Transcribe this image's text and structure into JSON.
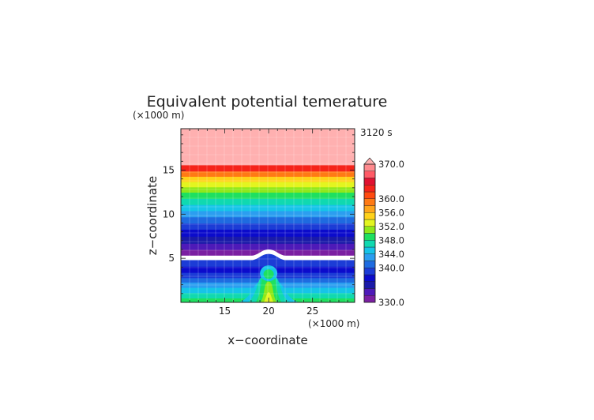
{
  "chart_data": {
    "type": "heatmap",
    "title": "Equivalent potential temerature",
    "time_label": "3120 s",
    "xlabel": "x−coordinate",
    "ylabel": "z−coordinate",
    "x_unit": "(×1000 m)",
    "y_unit": "(×1000 m)",
    "xlim": [
      10,
      29.8
    ],
    "ylim": [
      0,
      19.7
    ],
    "x_ticks": [
      "15",
      "20",
      "25"
    ],
    "x_tick_values": [
      15,
      20,
      25
    ],
    "y_ticks": [
      "5",
      "10",
      "15"
    ],
    "y_tick_values": [
      5,
      10,
      15
    ],
    "grid": true,
    "colorbar": {
      "levels": [
        330,
        332,
        334,
        336,
        338,
        340,
        342,
        344,
        346,
        348,
        350,
        352,
        354,
        356,
        358,
        360,
        362,
        364,
        366,
        368,
        370
      ],
      "colors": [
        "#7b1fa2",
        "#4e1ab8",
        "#1a1aa8",
        "#0b0bcc",
        "#1c3cd6",
        "#1e6be0",
        "#2b9ef0",
        "#16c4e8",
        "#10d9b0",
        "#1ee060",
        "#8ee81a",
        "#e3f520",
        "#ffd21a",
        "#ffa51a",
        "#ff7a14",
        "#ff4a10",
        "#f5231a",
        "#e01030",
        "#ff5a66",
        "#ff8a8e"
      ],
      "over_color": "#ffb0b0",
      "tick_labels": [
        "330.0",
        "340.0",
        "344.0",
        "348.0",
        "352.0",
        "356.0",
        "360.0",
        "370.0"
      ],
      "tick_values": [
        330,
        340,
        344,
        348,
        352,
        356,
        360,
        370
      ]
    },
    "field_bands": [
      {
        "z_from": 0.0,
        "z_to": 0.5,
        "value": 349
      },
      {
        "z_from": 0.5,
        "z_to": 1.1,
        "value": 347
      },
      {
        "z_from": 1.1,
        "z_to": 1.7,
        "value": 345
      },
      {
        "z_from": 1.7,
        "z_to": 2.3,
        "value": 343
      },
      {
        "z_from": 2.3,
        "z_to": 2.8,
        "value": 341
      },
      {
        "z_from": 2.8,
        "z_to": 3.4,
        "value": 339
      },
      {
        "z_from": 3.4,
        "z_to": 4.1,
        "value": 337
      },
      {
        "z_from": 4.1,
        "z_to": 4.8,
        "value": 339
      },
      {
        "z_from": 5.3,
        "z_to": 6.0,
        "value": 331
      },
      {
        "z_from": 6.0,
        "z_to": 6.7,
        "value": 333
      },
      {
        "z_from": 6.7,
        "z_to": 7.5,
        "value": 335
      },
      {
        "z_from": 7.5,
        "z_to": 8.3,
        "value": 337
      },
      {
        "z_from": 8.3,
        "z_to": 9.0,
        "value": 339
      },
      {
        "z_from": 9.0,
        "z_to": 9.7,
        "value": 341
      },
      {
        "z_from": 9.7,
        "z_to": 10.4,
        "value": 343
      },
      {
        "z_from": 10.4,
        "z_to": 11.1,
        "value": 345
      },
      {
        "z_from": 11.1,
        "z_to": 11.8,
        "value": 347
      },
      {
        "z_from": 11.8,
        "z_to": 12.5,
        "value": 349
      },
      {
        "z_from": 12.5,
        "z_to": 13.1,
        "value": 351
      },
      {
        "z_from": 13.1,
        "z_to": 13.7,
        "value": 353
      },
      {
        "z_from": 13.7,
        "z_to": 14.3,
        "value": 355
      },
      {
        "z_from": 14.3,
        "z_to": 14.9,
        "value": 359
      },
      {
        "z_from": 14.9,
        "z_to": 15.6,
        "value": 363
      },
      {
        "z_from": 15.6,
        "z_to": 19.7,
        "value": 371
      }
    ],
    "gap_band": {
      "z_from": 4.8,
      "z_to": 5.3,
      "color": "#ffffff"
    },
    "plume": {
      "center_x": 20,
      "layers": [
        {
          "value": 345,
          "half_width": 3.6,
          "z_top": 2.6
        },
        {
          "value": 347,
          "half_width": 2.6,
          "z_top": 3.2
        },
        {
          "value": 349,
          "half_width": 1.6,
          "z_top": 4.2
        },
        {
          "value": 351,
          "half_width": 1.0,
          "z_top": 2.4
        },
        {
          "value": 353,
          "half_width": 0.6,
          "z_top": 1.2
        }
      ]
    },
    "bump": {
      "center_x": 20,
      "half_width": 2.2,
      "height": 0.7
    }
  }
}
